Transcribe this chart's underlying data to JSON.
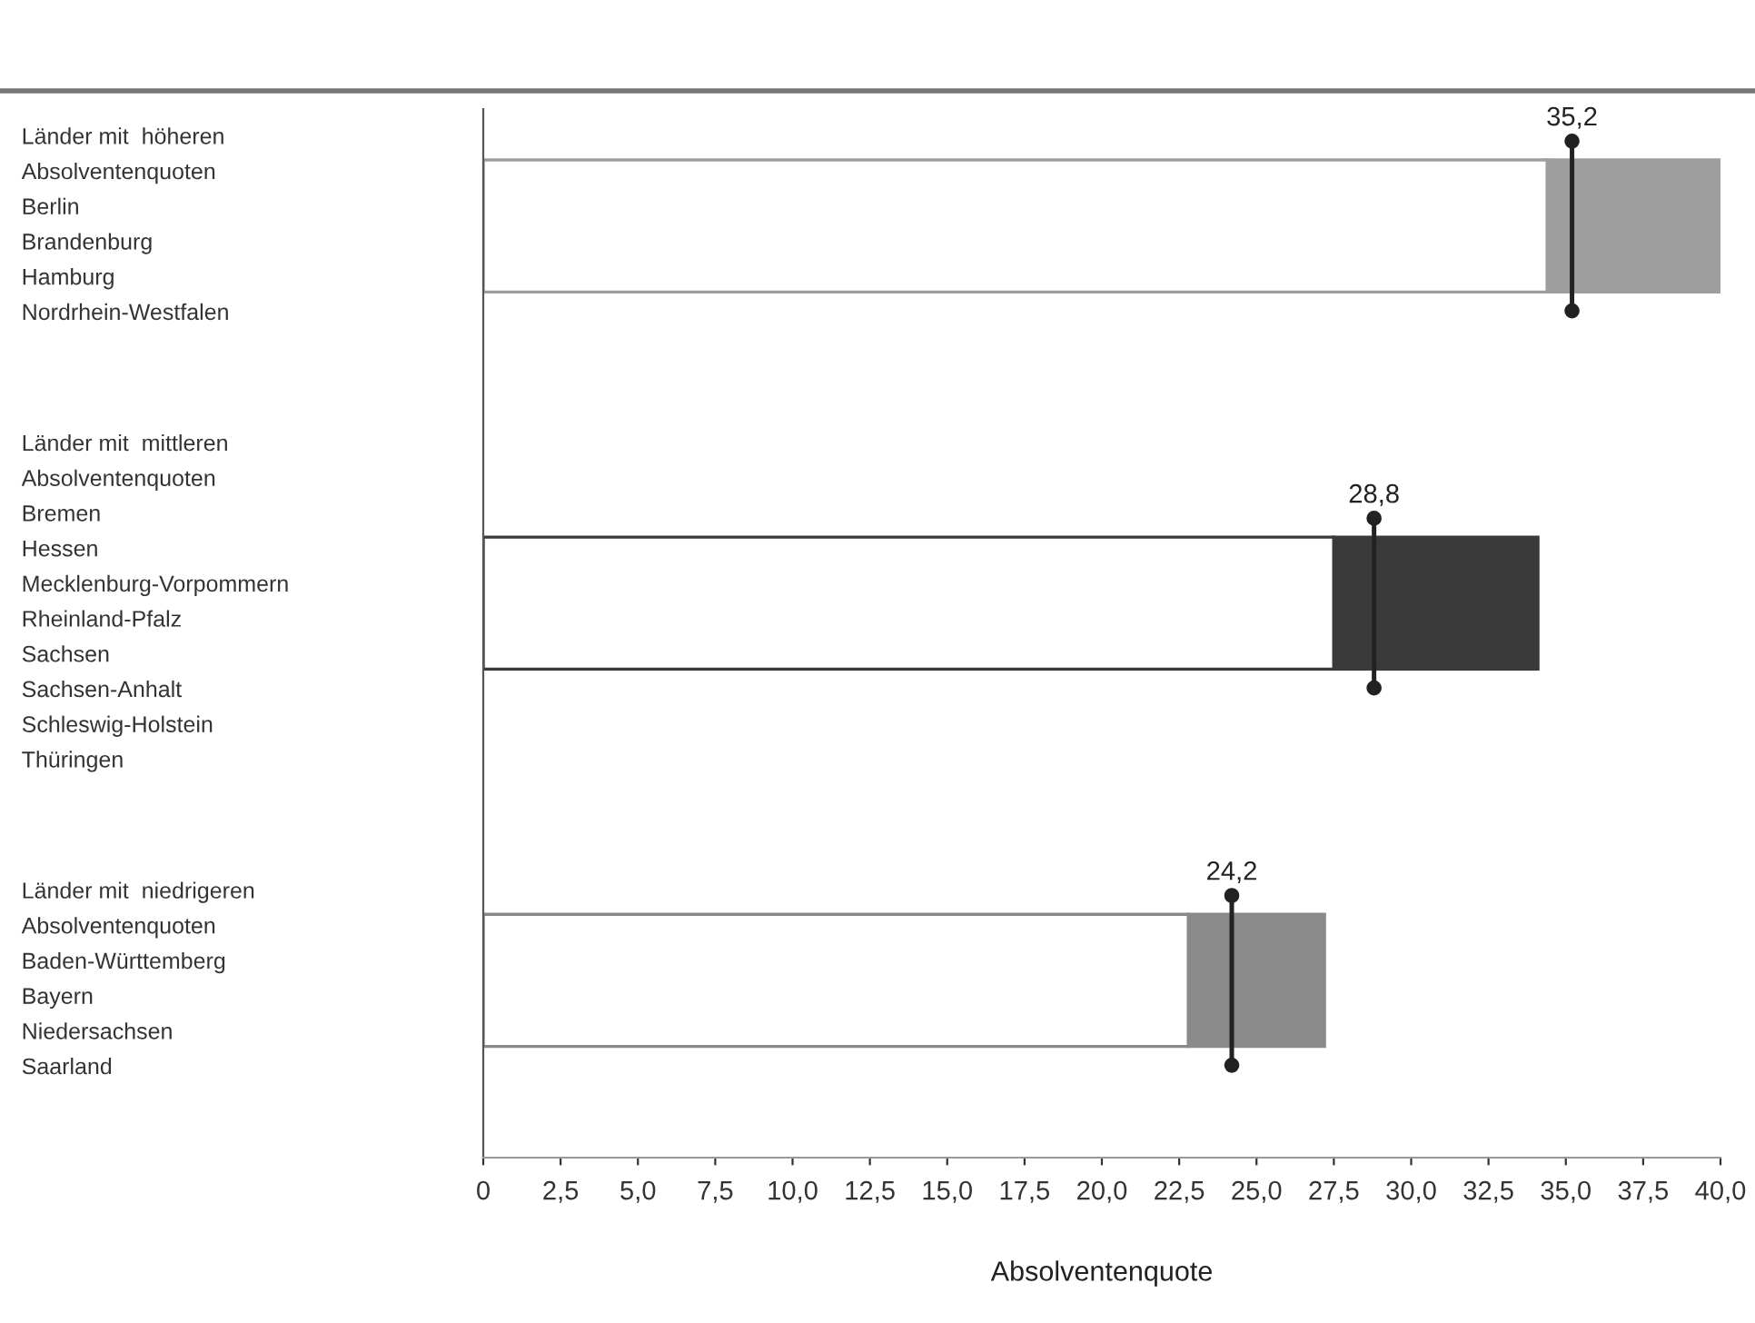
{
  "chart_data": {
    "type": "bar",
    "orientation": "horizontal",
    "stacked": true,
    "categories": [
      "Länder mit  höheren\nAbsolventenquoten\nBerlin\nBrandenburg\nHamburg\nNordrhein-Westfalen",
      "Länder mit  mittleren\nAbsolventenquoten\nBremen\nHessen\nMecklenburg-Vorpommern\nRheinland-Pfalz\nSachsen\nSachsen-Anhalt\nSchleswig-Holstein\nThüringen",
      "Länder mit  niedrigeren\nAbsolventenquoten\nBaden-Württemberg\nBayern\nNiedersachsen\nSaarland"
    ],
    "series": [
      {
        "color": "#ffffff",
        "values": [
          34.4,
          27.5,
          22.8
        ]
      },
      {
        "colors": [
          "#9e9e9e",
          "#3a3a3a",
          "#8a8a8a"
        ],
        "values": [
          5.6,
          6.6,
          4.4
        ]
      },
      {
        "type": "scatter",
        "color": "#222222",
        "values": [
          35.2,
          28.8,
          24.2
        ],
        "value_labels": [
          "35,2",
          "28,8",
          "24,2"
        ]
      }
    ],
    "xlabel": "Absolventenquote",
    "xlim": [
      0,
      40
    ],
    "xticks": [
      0,
      {
        "value": 2.5,
        "label": "2,5"
      },
      {
        "value": 5,
        "label": "5,0"
      },
      {
        "value": 7.5,
        "label": "7,5"
      },
      {
        "value": 10,
        "label": "10,0"
      },
      {
        "value": 12.5,
        "label": "12,5"
      },
      {
        "value": 15,
        "label": "15,0"
      },
      {
        "value": 17.5,
        "label": "17,5"
      },
      {
        "value": 20,
        "label": "20,0"
      },
      {
        "value": 22.5,
        "label": "22,5"
      },
      {
        "value": 25,
        "label": "25,0"
      },
      {
        "value": 27.5,
        "label": "27,5"
      },
      {
        "value": 30,
        "label": "30,0"
      },
      {
        "value": 32.5,
        "label": "32,5"
      },
      {
        "value": 35,
        "label": "35,0"
      },
      {
        "value": 37.5,
        "label": "37,5"
      },
      {
        "value": 40,
        "label": "40,0"
      }
    ],
    "grid": false,
    "legend": false
  }
}
